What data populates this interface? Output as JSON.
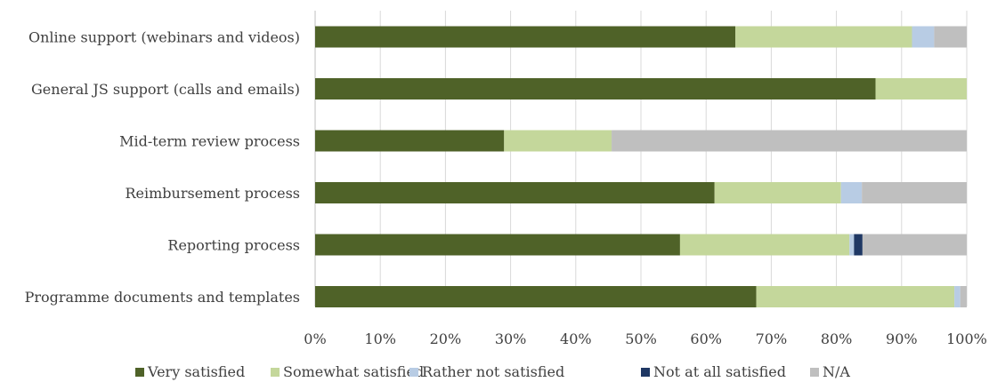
{
  "chart_data": {
    "type": "bar",
    "orientation": "horizontal",
    "stacked": true,
    "percent": true,
    "categories": [
      "Online support (webinars and videos)",
      "General JS support (calls and emails)",
      "Mid-term review process",
      "Reimbursement process",
      "Reporting process",
      "Programme documents and templates"
    ],
    "series": [
      {
        "name": "Very satisfied",
        "color": "#4f6228",
        "values": [
          64.5,
          86.0,
          29.0,
          61.3,
          56.0,
          67.7
        ]
      },
      {
        "name": "Somewhat satisfied",
        "color": "#c4d79b",
        "values": [
          27.1,
          14.0,
          16.5,
          19.4,
          26.0,
          30.4
        ]
      },
      {
        "name": "Rather not satisfied",
        "color": "#b8cce4",
        "values": [
          3.4,
          0,
          0,
          3.2,
          0.7,
          0.9
        ]
      },
      {
        "name": "Not at all satisfied",
        "color": "#1f3864",
        "values": [
          0,
          0,
          0,
          0,
          1.3,
          0
        ]
      },
      {
        "name": "N/A",
        "color": "#bfbfbf",
        "values": [
          5.0,
          0,
          54.5,
          16.1,
          16.0,
          1.0
        ]
      }
    ],
    "x_ticks": [
      "0%",
      "10%",
      "20%",
      "30%",
      "40%",
      "50%",
      "60%",
      "70%",
      "80%",
      "90%",
      "100%"
    ],
    "xlim": [
      0,
      100
    ],
    "grid": true,
    "legend_position": "bottom",
    "title": "",
    "xlabel": "",
    "ylabel": ""
  }
}
